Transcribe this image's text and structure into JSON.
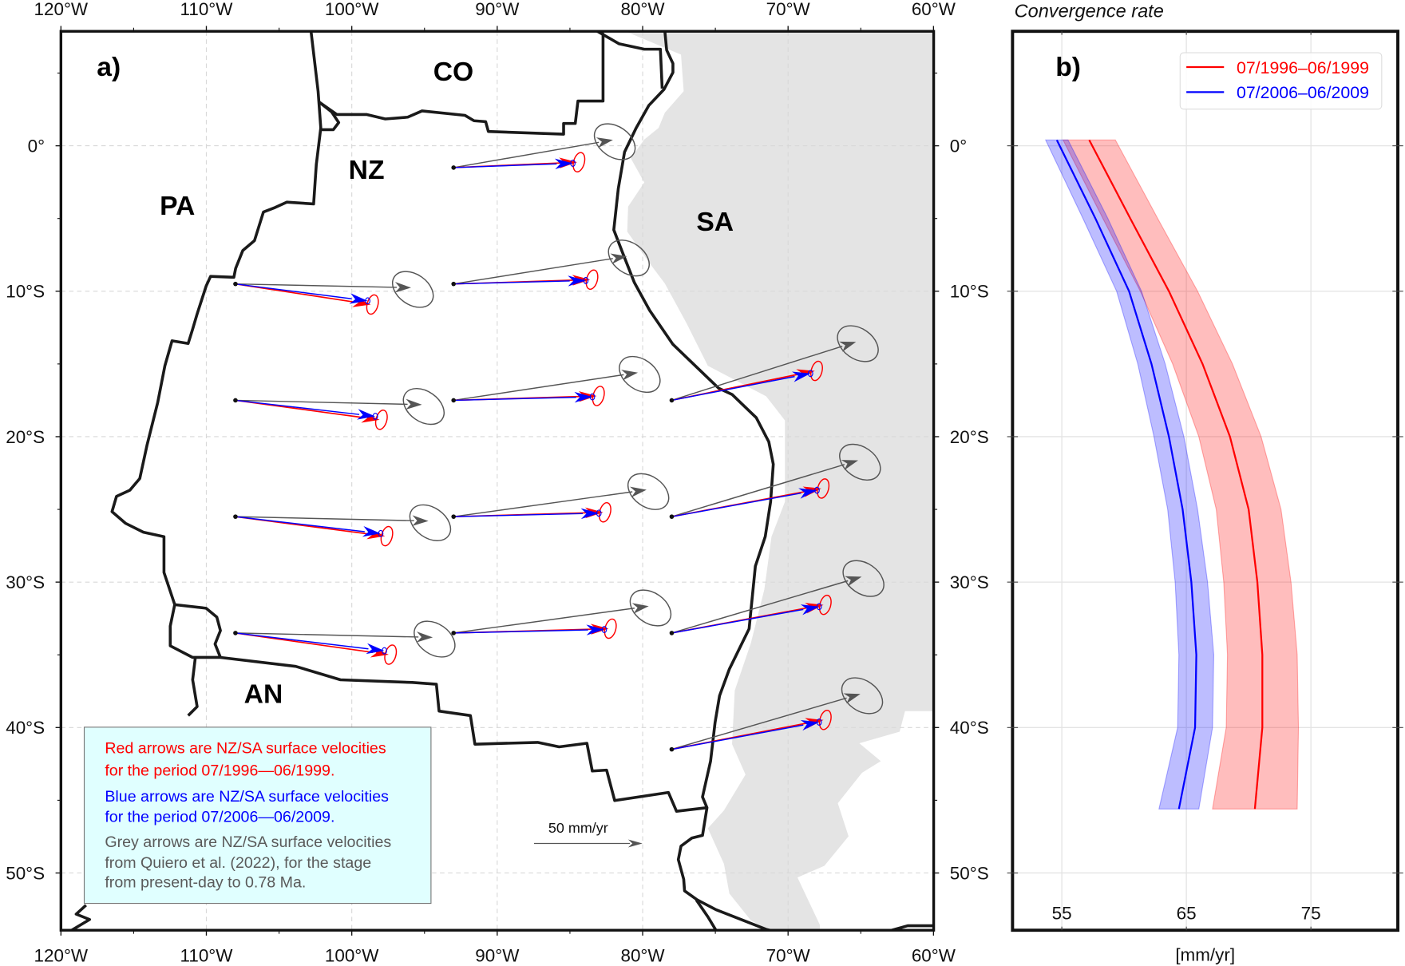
{
  "panel_a": {
    "label": "a)",
    "lon_ticks": [
      "120°W",
      "110°W",
      "100°W",
      "90°W",
      "80°W",
      "70°W",
      "60°W"
    ],
    "lat_ticks": [
      "0°",
      "10°S",
      "20°S",
      "30°S",
      "40°S",
      "50°S"
    ],
    "plates": [
      "CO",
      "NZ",
      "PA",
      "SA",
      "AN"
    ],
    "scale_label": "50 mm/yr",
    "scale_value": 50,
    "colors": {
      "red": "#ff0000",
      "blue": "#0000ff",
      "grey": "#555555",
      "land": "#e4e4e4",
      "note_bg": "#e0ffff"
    },
    "note": {
      "red": [
        "Red arrows are NZ/SA surface velocities",
        "for the period 07/1996—06/1999."
      ],
      "blue": [
        "Blue arrows are NZ/SA surface velocities",
        "for the period 07/2006—06/2009."
      ],
      "grey": [
        "Grey arrows are NZ/SA surface velocities",
        "from Quiero et al. (2022), for the stage",
        "from present-day to 0.78 Ma."
      ]
    },
    "stations": [
      {
        "lon": -93,
        "lat": -1.5,
        "grey": [
          73.5,
          12.8
        ],
        "red": [
          57,
          2.5
        ],
        "blue": [
          55,
          2
        ]
      },
      {
        "lon": -108,
        "lat": -9.5,
        "grey": [
          81,
          -1.7
        ],
        "red": [
          62.4,
          -9.5
        ],
        "blue": [
          61,
          -7.8
        ]
      },
      {
        "lon": -93,
        "lat": -9.5,
        "grey": [
          80,
          12.8
        ],
        "red": [
          63,
          2
        ],
        "blue": [
          61,
          1.6
        ]
      },
      {
        "lon": -108,
        "lat": -17.5,
        "grey": [
          86,
          -2
        ],
        "red": [
          66.5,
          -9
        ],
        "blue": [
          64.5,
          -7.4
        ]
      },
      {
        "lon": -93,
        "lat": -17.5,
        "grey": [
          85,
          12.8
        ],
        "red": [
          66,
          2
        ],
        "blue": [
          64,
          1.6
        ]
      },
      {
        "lon": -78,
        "lat": -17.5,
        "grey": [
          85,
          27
        ],
        "red": [
          66,
          13.6
        ],
        "blue": [
          64,
          12.4
        ]
      },
      {
        "lon": -108,
        "lat": -25.5,
        "grey": [
          89,
          -2
        ],
        "red": [
          69,
          -9
        ],
        "blue": [
          67,
          -7.8
        ]
      },
      {
        "lon": -93,
        "lat": -25.5,
        "grey": [
          89,
          12.4
        ],
        "red": [
          69,
          2
        ],
        "blue": [
          67,
          1.6
        ]
      },
      {
        "lon": -78,
        "lat": -25.5,
        "grey": [
          86,
          26
        ],
        "red": [
          69,
          13
        ],
        "blue": [
          67,
          12.2
        ]
      },
      {
        "lon": -108,
        "lat": -33.5,
        "grey": [
          91,
          -2
        ],
        "red": [
          70.7,
          -10
        ],
        "blue": [
          68.7,
          -8.2
        ]
      },
      {
        "lon": -93,
        "lat": -33.5,
        "grey": [
          90,
          12.4
        ],
        "red": [
          71.5,
          2
        ],
        "blue": [
          69.5,
          1.6
        ]
      },
      {
        "lon": -78,
        "lat": -33.5,
        "grey": [
          87.6,
          26
        ],
        "red": [
          70,
          13
        ],
        "blue": [
          68,
          12.2
        ]
      },
      {
        "lon": -78,
        "lat": -41.5,
        "grey": [
          87,
          25.6
        ],
        "red": [
          70,
          13.6
        ],
        "blue": [
          68,
          12.6
        ]
      }
    ]
  },
  "chart_data": {
    "type": "line",
    "panel_label": "b)",
    "title": "Convergence rate",
    "xlabel": "[mm/yr]",
    "ylabel": "",
    "xlim": [
      51,
      82
    ],
    "ylim": [
      -53.9,
      7.9
    ],
    "x_ticks": [
      "55",
      "65",
      "75"
    ],
    "grid": true,
    "legend_position": "top-right",
    "lat": [
      0.4,
      -5,
      -10,
      -15,
      -20,
      -25,
      -30,
      -35,
      -40,
      -45.6
    ],
    "series": [
      {
        "name": "07/1996–06/1999",
        "color": "#ff0000",
        "values": [
          57.2,
          60.5,
          63.6,
          66.3,
          68.5,
          70.0,
          70.7,
          71.1,
          71.1,
          70.5
        ],
        "lower": [
          55.1,
          58.3,
          61.3,
          63.9,
          66.0,
          67.4,
          68.0,
          68.3,
          68.2,
          67.1
        ],
        "upper": [
          59.3,
          62.7,
          65.9,
          68.7,
          71.0,
          72.6,
          73.4,
          73.9,
          74.0,
          73.9
        ]
      },
      {
        "name": "07/2006–06/2009",
        "color": "#0000ff",
        "values": [
          54.6,
          57.7,
          60.4,
          62.2,
          63.6,
          64.7,
          65.4,
          65.8,
          65.7,
          64.4
        ],
        "lower": [
          53.7,
          56.7,
          59.4,
          61.1,
          62.4,
          63.5,
          64.1,
          64.4,
          64.3,
          62.8
        ],
        "upper": [
          55.5,
          58.7,
          61.4,
          63.3,
          64.8,
          65.9,
          66.7,
          67.2,
          67.1,
          66.0
        ]
      }
    ]
  }
}
